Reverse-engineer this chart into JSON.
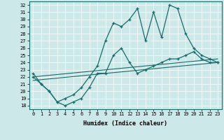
{
  "xlabel": "Humidex (Indice chaleur)",
  "background_color": "#cce8e8",
  "line_color": "#1a6b6b",
  "xlim": [
    -0.5,
    23.5
  ],
  "ylim": [
    17.5,
    32.5
  ],
  "yticks": [
    18,
    19,
    20,
    21,
    22,
    23,
    24,
    25,
    26,
    27,
    28,
    29,
    30,
    31,
    32
  ],
  "xticks": [
    0,
    1,
    2,
    3,
    4,
    5,
    6,
    7,
    8,
    9,
    10,
    11,
    12,
    13,
    14,
    15,
    16,
    17,
    18,
    19,
    20,
    21,
    22,
    23
  ],
  "series_upper_x": [
    0,
    1,
    2,
    3,
    4,
    5,
    6,
    7,
    8,
    9,
    10,
    11,
    12,
    13,
    14,
    15,
    16,
    17,
    18,
    19,
    20,
    21,
    22,
    23
  ],
  "series_upper_y": [
    22.5,
    21.0,
    20.0,
    18.5,
    19.0,
    19.5,
    20.5,
    22.0,
    23.5,
    27.0,
    29.5,
    29.0,
    30.0,
    31.5,
    27.0,
    31.0,
    27.5,
    32.0,
    31.5,
    28.0,
    26.0,
    25.0,
    24.5,
    24.0
  ],
  "series_lower_x": [
    0,
    1,
    2,
    3,
    4,
    5,
    6,
    7,
    8,
    9,
    10,
    11,
    12,
    13,
    14,
    15,
    16,
    17,
    18,
    19,
    20,
    21,
    22,
    23
  ],
  "series_lower_y": [
    22.0,
    21.0,
    20.0,
    18.5,
    18.0,
    18.5,
    19.0,
    20.5,
    22.5,
    22.5,
    25.0,
    26.0,
    24.0,
    22.5,
    23.0,
    23.5,
    24.0,
    24.5,
    24.5,
    25.0,
    25.5,
    24.5,
    24.0,
    24.0
  ],
  "line1_x": [
    0,
    23
  ],
  "line1_y": [
    22.0,
    24.5
  ],
  "line2_x": [
    0,
    23
  ],
  "line2_y": [
    21.5,
    24.0
  ]
}
